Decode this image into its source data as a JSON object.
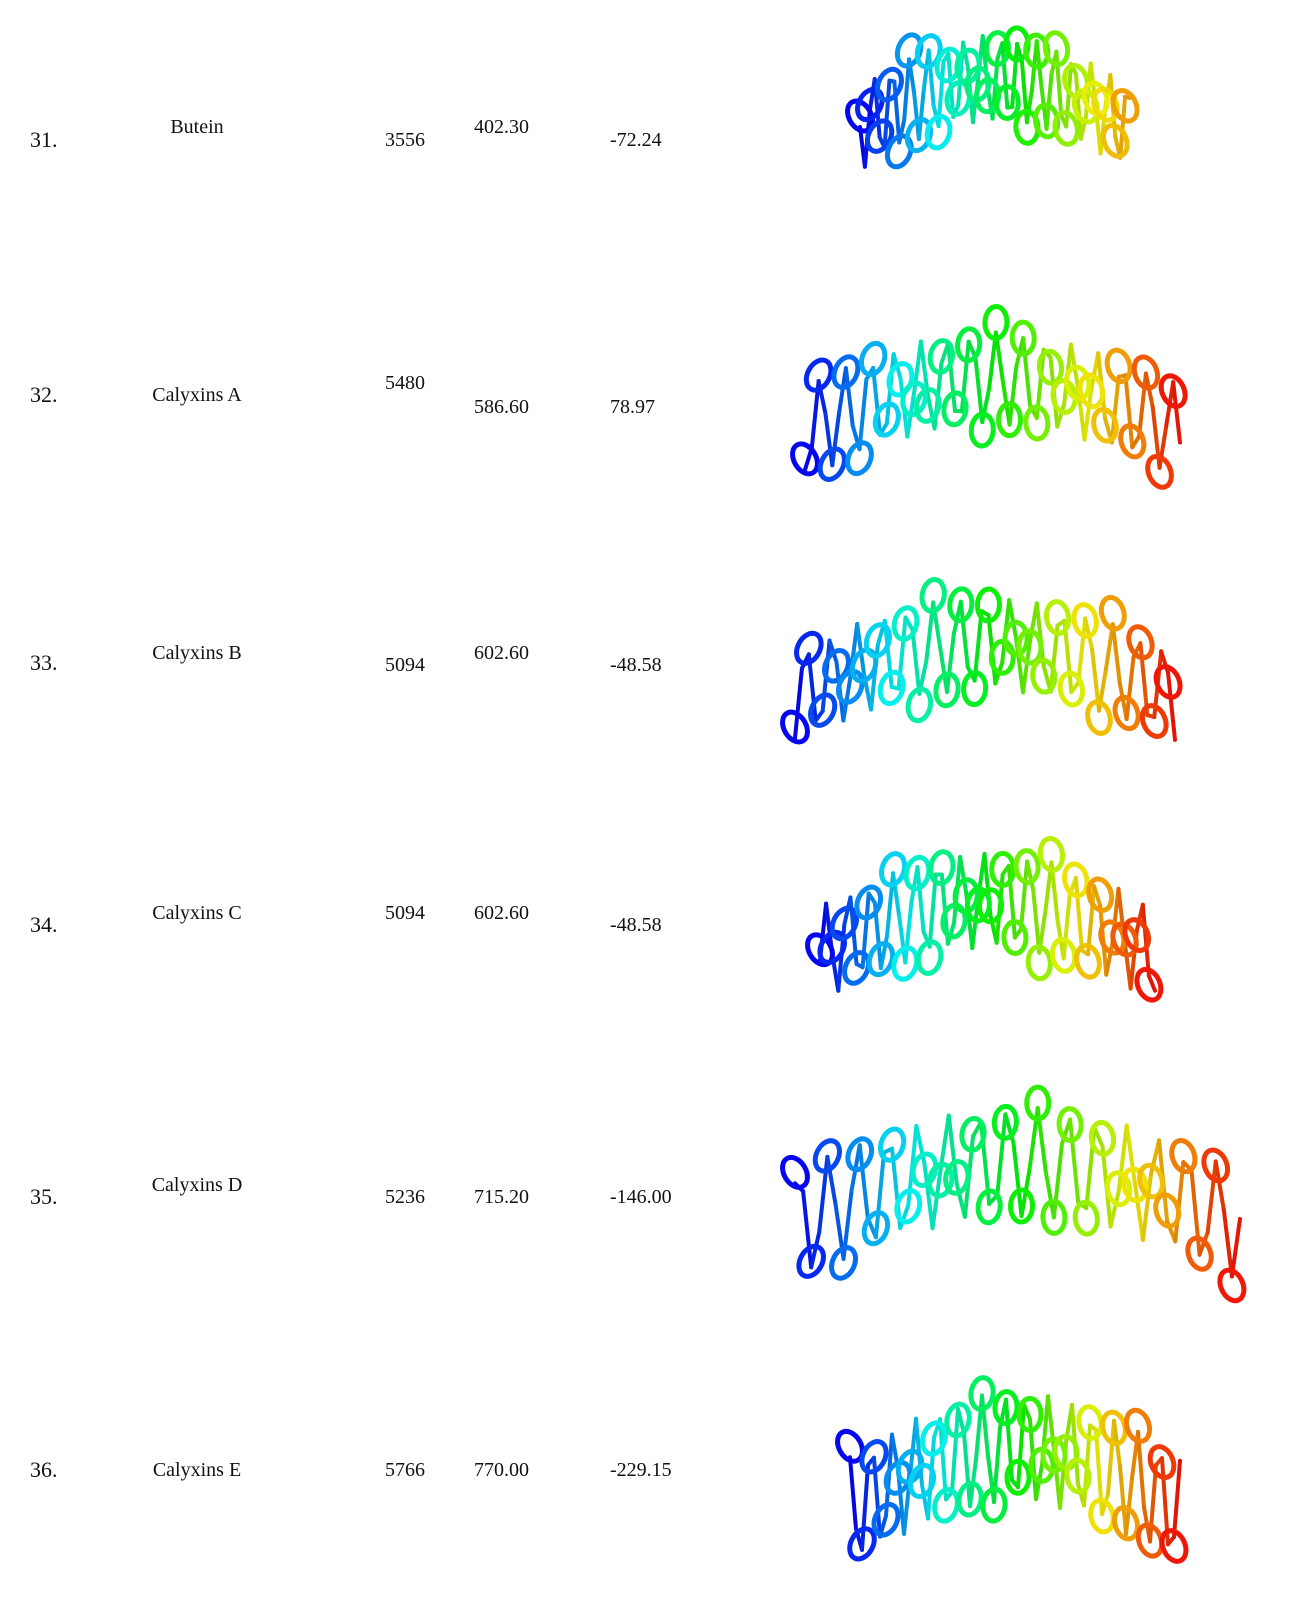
{
  "table": {
    "rows": [
      [
        "31.",
        "Butein",
        "3556",
        "402.30",
        "-72.24"
      ],
      [
        "32.",
        "Calyxins A",
        "5480",
        "586.60",
        "78.97"
      ],
      [
        "33.",
        "Calyxins B",
        "5094",
        "602.60",
        "-48.58"
      ],
      [
        "34.",
        "Calyxins C",
        "5094",
        "602.60",
        "-48.58"
      ],
      [
        "35.",
        "Calyxins D",
        "5236",
        "715.20",
        "-146.00"
      ],
      [
        "36.",
        "Calyxins E",
        "5766",
        "770.00",
        "-229.15"
      ]
    ]
  }
}
